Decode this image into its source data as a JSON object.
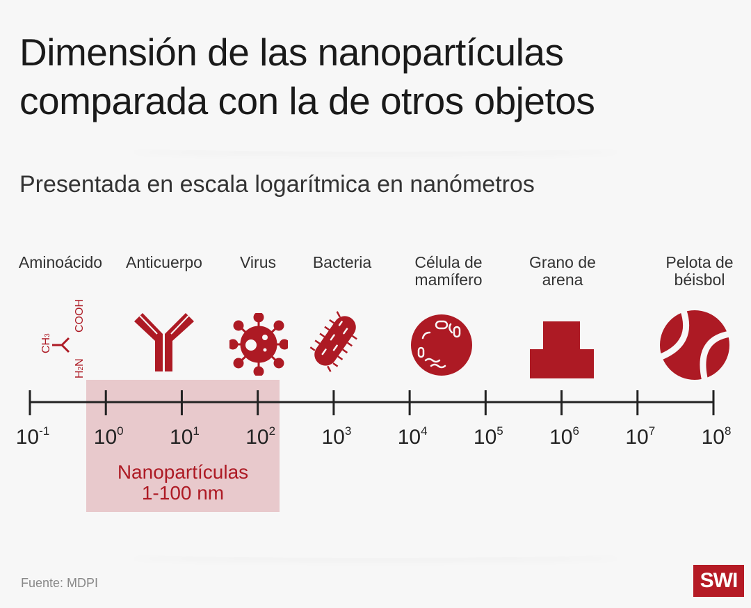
{
  "title_lines": [
    "Dimensión de las nanopartículas",
    "comparada con la de otros objetos"
  ],
  "subtitle": "Presentada en escala logarítmica en nanómetros",
  "colors": {
    "accent": "#ad1a24",
    "nano_band": "#e8c9cc",
    "axis": "#222222",
    "background": "#f7f7f7"
  },
  "chart_data": {
    "type": "scale",
    "scale": "log",
    "unit": "nm",
    "axis_range": [
      -1,
      8
    ],
    "ticks": [
      {
        "base": "10",
        "exp": "-1"
      },
      {
        "base": "10",
        "exp": "0"
      },
      {
        "base": "10",
        "exp": "1"
      },
      {
        "base": "10",
        "exp": "2"
      },
      {
        "base": "10",
        "exp": "3"
      },
      {
        "base": "10",
        "exp": "4"
      },
      {
        "base": "10",
        "exp": "5"
      },
      {
        "base": "10",
        "exp": "6"
      },
      {
        "base": "10",
        "exp": "7"
      },
      {
        "base": "10",
        "exp": "8"
      }
    ],
    "objects": [
      {
        "label": "Aminoácido",
        "exp": -0.3,
        "icon": "amino-acid-icon"
      },
      {
        "label": "Anticuerpo",
        "exp": 1.0,
        "icon": "antibody-icon"
      },
      {
        "label": "Virus",
        "exp": 2.0,
        "icon": "virus-icon"
      },
      {
        "label": "Bacteria",
        "exp": 3.1,
        "icon": "bacteria-icon"
      },
      {
        "label": "Célula de\nmamífero",
        "exp": 4.5,
        "icon": "cell-icon"
      },
      {
        "label": "Grano de\narena",
        "exp": 6.0,
        "icon": "sand-grain-icon"
      },
      {
        "label": "Pelota de\nbéisbol",
        "exp": 8.0,
        "icon": "baseball-icon"
      }
    ],
    "highlight": {
      "label_line1": "Nanopartículas",
      "label_line2": "1-100 nm",
      "range_exp": [
        0,
        2
      ]
    }
  },
  "molecule": {
    "ch3": "CH",
    "ch3_sub": "3",
    "cooh": "COOH",
    "h2n_h": "H",
    "h2n_sub": "2",
    "h2n_n": "N"
  },
  "footer": {
    "source": "Fuente:  MDPI",
    "logo": "SWI"
  }
}
